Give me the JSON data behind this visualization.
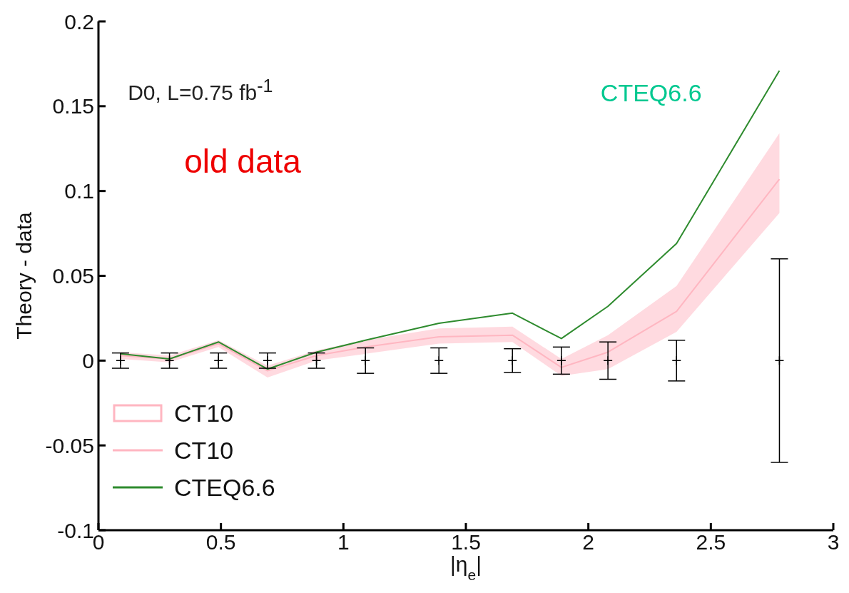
{
  "chart_data": {
    "type": "line",
    "xlabel": "|η$_{e}$|",
    "ylabel": "Theory - data",
    "x": [
      0.09,
      0.29,
      0.49,
      0.69,
      0.89,
      1.09,
      1.39,
      1.69,
      1.89,
      2.08,
      2.36,
      2.78
    ],
    "series": [
      {
        "name": "CT10",
        "color": "#ffb6c1",
        "values": [
          0.003,
          0.001,
          0.01,
          -0.006,
          0.003,
          0.008,
          0.014,
          0.015,
          -0.004,
          0.005,
          0.029,
          0.107
        ],
        "lower": [
          0.001,
          -0.001,
          0.008,
          -0.01,
          0,
          0.004,
          0.01,
          0.011,
          -0.009,
          -0.005,
          0.017,
          0.087
        ],
        "upper": [
          0.005,
          0.003,
          0.012,
          -0.003,
          0.006,
          0.012,
          0.019,
          0.02,
          0.001,
          0.015,
          0.044,
          0.134
        ]
      },
      {
        "name": "CTEQ6.6",
        "color": "#2e8b2e",
        "values": [
          0.004,
          0.001,
          0.011,
          -0.005,
          0.005,
          0.012,
          0.022,
          0.028,
          0.013,
          0.032,
          0.069,
          0.171
        ]
      },
      {
        "type": "scatter",
        "marker": "cross",
        "color": "#000000",
        "values": [
          0,
          0,
          0,
          0,
          0,
          0,
          0,
          0,
          0,
          0,
          0,
          0
        ],
        "errors": [
          0.0045,
          0.0045,
          0.0045,
          0.0045,
          0.0045,
          0.0075,
          0.0075,
          0.007,
          0.008,
          0.011,
          0.012,
          0.06
        ]
      }
    ],
    "xlim": [
      0,
      3
    ],
    "xticks": [
      0,
      0.5,
      1,
      1.5,
      2,
      2.5,
      3
    ],
    "ylim": [
      -0.1,
      0.2
    ],
    "yticks": [
      -0.1,
      -0.05,
      0,
      0.05,
      0.1,
      0.15,
      0.2
    ],
    "grid": false,
    "legend": "bottom left",
    "line_style": "solid",
    "annotations": [
      "D0, L=0.75 fb$^{-1}$",
      "old data",
      "CTEQ6.6"
    ]
  }
}
